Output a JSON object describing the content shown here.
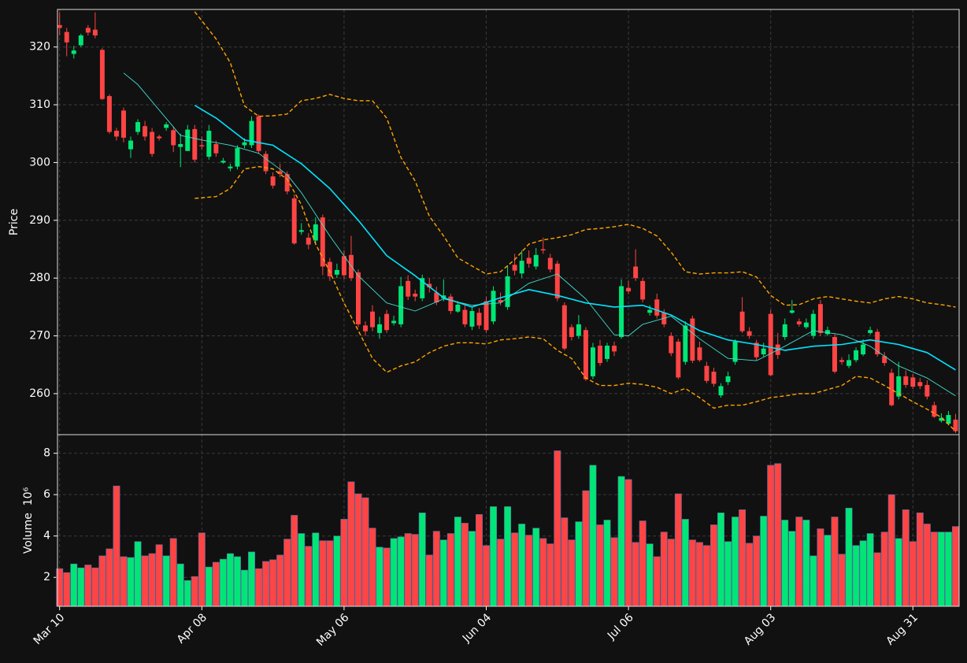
{
  "chart_data": [
    {
      "type": "candlestick",
      "ylabel": "Price",
      "ylim": [
        252.9,
        326.5
      ],
      "yticks": [
        260,
        270,
        280,
        290,
        300,
        310,
        320
      ],
      "grid": true,
      "up_color": "#00e676",
      "down_color": "#ff4444",
      "open": [
        323.8,
        322.6,
        318.8,
        320.3,
        323.3,
        323,
        319.5,
        311.5,
        305.5,
        309,
        302.3,
        305.3,
        306.3,
        305.3,
        304.5,
        306,
        305.6,
        302.7,
        302,
        305.8,
        303,
        301,
        303.2,
        300,
        299,
        299.3,
        303,
        303,
        308,
        301.5,
        297.6,
        298.5,
        298,
        293.8,
        288,
        287,
        286.5,
        290.5,
        282.8,
        280.6,
        283.8,
        284,
        281,
        271.8,
        274.2,
        270.5,
        273.8,
        272.2,
        272,
        279.5,
        277.3,
        276.5,
        279,
        277.5,
        276.5,
        276.8,
        274.2,
        274.5,
        271.6,
        274,
        276,
        272.5,
        276.2,
        275,
        282.3,
        280.8,
        283.5,
        282,
        285,
        283.5,
        282.5,
        275.3,
        271.5,
        270,
        271,
        263,
        268.3,
        266,
        268.3,
        269.8,
        278.3,
        282,
        279.5,
        274,
        276.3,
        274,
        270,
        269,
        265.5,
        273,
        268,
        264.8,
        263.8,
        259.7,
        262,
        265.5,
        274.2,
        270.8,
        268.8,
        266.8,
        273.8,
        268.5,
        269.8,
        274,
        272.5,
        271.5,
        270,
        275.5,
        270.3,
        269.8,
        265.8,
        264.8,
        265.8,
        266.8,
        270.5,
        270.7,
        266.5,
        263.6,
        259.5,
        263,
        262.8,
        262,
        261.5,
        258,
        255.3,
        254.8,
        255.5
      ],
      "high": [
        326,
        323.3,
        320.2,
        322.3,
        323.8,
        326,
        319.8,
        311.8,
        306,
        309.5,
        304.5,
        307.5,
        307.2,
        306,
        304.8,
        307,
        306.2,
        305,
        306.5,
        306.5,
        304.5,
        306.5,
        303.8,
        300.8,
        299.8,
        303,
        304.2,
        308,
        308.3,
        302,
        298.3,
        299.8,
        298.5,
        294.5,
        289.5,
        287.8,
        290.5,
        291,
        283.5,
        282.5,
        284.8,
        287.3,
        281.5,
        272.5,
        275.3,
        273.3,
        274.5,
        273.5,
        280.2,
        280.5,
        278,
        280.6,
        280,
        278.5,
        279.8,
        277.3,
        276,
        275.3,
        275,
        274.8,
        276.8,
        278.6,
        277.5,
        282.2,
        284.2,
        284.8,
        284.8,
        285.2,
        287,
        284.2,
        283,
        275.8,
        272,
        273.6,
        271.5,
        268.8,
        269.3,
        268.8,
        269,
        279.8,
        279.5,
        285,
        280,
        275.3,
        277.3,
        274.6,
        270.6,
        269.5,
        272.5,
        273.5,
        269,
        265.5,
        264.5,
        261.8,
        263.8,
        269.4,
        276.7,
        271.5,
        269.3,
        268.8,
        274.5,
        270.5,
        273,
        276.2,
        273,
        273,
        274.5,
        276.2,
        271.6,
        270.3,
        266.3,
        266.8,
        268,
        269.4,
        271.6,
        271.2,
        267.2,
        264.3,
        265.5,
        264,
        263.4,
        262.7,
        262.3,
        258.6,
        256.6,
        257,
        256.5
      ],
      "low": [
        322,
        318.4,
        318,
        320,
        322,
        321.5,
        310.8,
        305,
        303.8,
        303.5,
        300.8,
        304.8,
        303.8,
        301,
        303.8,
        305.5,
        301.8,
        299.2,
        302.5,
        300,
        302.3,
        300.5,
        301,
        299.8,
        298.5,
        298.8,
        302.5,
        302.5,
        301.5,
        298,
        295.5,
        297.5,
        294.5,
        285.8,
        287.5,
        285,
        285.8,
        280.5,
        279.5,
        280,
        279.8,
        279.5,
        271.5,
        270,
        270.8,
        269.5,
        270.5,
        271.8,
        271.5,
        276.2,
        276,
        276,
        277.5,
        275.3,
        276,
        273.8,
        274,
        271.5,
        271,
        271.2,
        270.5,
        272,
        275.3,
        274.5,
        280.5,
        280,
        281.8,
        281.5,
        284.2,
        281,
        276,
        267.5,
        269.2,
        269.5,
        262.2,
        262.5,
        264.8,
        265.5,
        266.5,
        269.5,
        277.2,
        279.5,
        275.8,
        273.5,
        273,
        271.5,
        266.5,
        262.5,
        265,
        265.3,
        265.5,
        261.8,
        261.2,
        259.3,
        261.5,
        265,
        270.5,
        269.5,
        265.8,
        266.4,
        263,
        266,
        269.3,
        273.8,
        271.6,
        271.2,
        269.5,
        270,
        270,
        263.5,
        265,
        264.4,
        265.4,
        266.5,
        270.2,
        266.4,
        264.8,
        257.8,
        259,
        261,
        260.8,
        260.8,
        259,
        255.8,
        255,
        254.5,
        253.2
      ],
      "close": [
        323.3,
        320.8,
        319.4,
        322,
        322.5,
        322,
        311,
        305.3,
        304.5,
        304.3,
        303.8,
        307,
        304.5,
        301.5,
        304.2,
        306.6,
        303,
        303.2,
        305.7,
        300.5,
        302.8,
        305.5,
        301.6,
        300.3,
        299.3,
        302.5,
        303.5,
        307.2,
        302,
        298.5,
        296,
        298,
        295,
        286,
        288.3,
        285.8,
        289.3,
        282,
        280.3,
        281.4,
        280.5,
        280,
        272,
        270.8,
        271.5,
        272,
        271,
        272.6,
        278.6,
        276.8,
        276.8,
        280,
        278.4,
        275.8,
        277,
        274.3,
        275.4,
        272,
        274.3,
        271.8,
        271,
        277.8,
        275.8,
        280.3,
        281.3,
        283,
        282.5,
        284,
        284.8,
        281.5,
        276.5,
        267.8,
        269.8,
        272,
        262.5,
        268,
        265.3,
        268.3,
        267.3,
        278.6,
        277.7,
        280,
        276.3,
        274.5,
        273.5,
        272,
        267,
        262.8,
        271.8,
        265.7,
        265.8,
        262.2,
        261.7,
        261.3,
        263,
        269,
        270.8,
        270,
        266.3,
        267.8,
        263.2,
        266.7,
        272,
        274.4,
        272,
        272.3,
        273.8,
        270.5,
        271,
        263.8,
        265.5,
        265.8,
        267.5,
        268.5,
        271,
        266.8,
        265.3,
        258,
        263,
        261.5,
        261.2,
        261.3,
        259.5,
        256,
        255.8,
        256.3,
        253.5
      ],
      "series": [
        {
          "color": "#00e5ff",
          "width": 1.6,
          "dashed": false,
          "x": [
            19,
            22,
            26,
            30,
            34,
            38,
            42,
            46,
            50,
            54,
            58,
            62,
            66,
            70,
            74,
            78,
            82,
            86,
            90,
            94,
            98,
            102,
            106,
            110,
            114,
            118,
            122,
            126
          ],
          "values": [
            309.9,
            307.7,
            303.9,
            303,
            299.8,
            295.5,
            290,
            283.9,
            280.4,
            276.6,
            275,
            276.6,
            278,
            277,
            275.7,
            275,
            275.3,
            273.6,
            270.9,
            269.3,
            268.5,
            267.5,
            268.2,
            268.5,
            269.3,
            268.5,
            267.1,
            264.1
          ]
        },
        {
          "color": "#40e0d0",
          "width": 0.9,
          "dashed": false,
          "x": [
            9,
            11,
            14,
            17,
            20,
            24,
            28,
            32,
            34,
            38,
            42,
            46,
            50,
            54,
            58,
            62,
            66,
            70,
            74,
            78,
            80,
            82,
            86,
            90,
            94,
            98,
            102,
            106,
            110,
            114,
            118,
            122,
            126
          ],
          "values": [
            315.5,
            313.5,
            309.1,
            304.7,
            303.9,
            303,
            301.6,
            297.9,
            294.8,
            287.3,
            280.4,
            275.7,
            274.3,
            276.4,
            275.3,
            275.7,
            279.1,
            280.7,
            276.4,
            270.2,
            270,
            272,
            273.4,
            269.5,
            266.1,
            265.7,
            268.2,
            270.9,
            270.2,
            268.2,
            264.8,
            262.7,
            259.6
          ]
        },
        {
          "color": "#ffa500",
          "width": 1.4,
          "dashed": true,
          "x": [
            19,
            22,
            24,
            26,
            28,
            30,
            32,
            34,
            36,
            38,
            40,
            42,
            44,
            46,
            48,
            50,
            52,
            54,
            56,
            58,
            60,
            62,
            64,
            66,
            68,
            70,
            72,
            74,
            76,
            78,
            80,
            82,
            84,
            86,
            88,
            90,
            92,
            94,
            96,
            98,
            100,
            102,
            104,
            106,
            108,
            110,
            112,
            114,
            116,
            118,
            120,
            122,
            124,
            126
          ],
          "values": [
            326.1,
            321.4,
            317.3,
            309.8,
            308,
            308.1,
            308.4,
            310.7,
            311.1,
            311.8,
            311.1,
            310.7,
            310.7,
            307.7,
            300.9,
            296.8,
            290.7,
            287.3,
            283.5,
            282.1,
            280.7,
            281.1,
            283.2,
            285.9,
            286.6,
            287,
            287.5,
            288.4,
            288.6,
            288.9,
            289.3,
            288.6,
            287.3,
            284.5,
            281.1,
            280.7,
            280.9,
            280.9,
            281.1,
            280.2,
            277,
            275.3,
            275.4,
            276.4,
            276.8,
            276.4,
            276,
            275.7,
            276.4,
            276.8,
            276.4,
            275.7,
            275.4,
            275
          ]
        },
        {
          "color": "#ffa500",
          "width": 1.4,
          "dashed": true,
          "x": [
            19,
            22,
            24,
            26,
            28,
            30,
            32,
            34,
            36,
            38,
            40,
            42,
            44,
            46,
            48,
            50,
            52,
            54,
            56,
            58,
            60,
            62,
            64,
            66,
            68,
            70,
            72,
            74,
            76,
            78,
            80,
            82,
            84,
            86,
            88,
            90,
            92,
            94,
            96,
            98,
            100,
            102,
            104,
            106,
            108,
            110,
            112,
            114,
            116,
            118,
            120,
            122,
            124,
            126
          ],
          "values": [
            293.8,
            294.1,
            295.5,
            298.9,
            299.3,
            298.9,
            297.1,
            292.7,
            285.9,
            281.1,
            275.7,
            270.9,
            266.1,
            263.7,
            264.8,
            265.5,
            267.1,
            268.2,
            268.8,
            268.8,
            268.6,
            269.3,
            269.5,
            269.8,
            269.5,
            267.5,
            266.1,
            262.7,
            261.4,
            261.4,
            261.8,
            261.6,
            261.1,
            260,
            260.9,
            259.3,
            257.5,
            258,
            258,
            258.6,
            259.3,
            259.6,
            260,
            260,
            260.7,
            261.4,
            263,
            262.7,
            261.4,
            260,
            258.6,
            257.3,
            255.9,
            253.5
          ]
        }
      ]
    },
    {
      "type": "bar",
      "ylabel": "Volume  10⁶",
      "ylim": [
        0.6,
        8.9
      ],
      "yticks": [
        2,
        4,
        6,
        8
      ],
      "grid": true,
      "categories": [
        "Mar 10",
        null,
        null,
        null,
        null,
        null,
        null,
        null,
        null,
        null,
        null,
        null,
        null,
        null,
        null,
        null,
        null,
        null,
        null,
        null,
        "Apr 08",
        null,
        null,
        null,
        null,
        null,
        null,
        null,
        null,
        null,
        null,
        null,
        null,
        null,
        null,
        null,
        null,
        null,
        null,
        null,
        "May 06",
        null,
        null,
        null,
        null,
        null,
        null,
        null,
        null,
        null,
        null,
        null,
        null,
        null,
        null,
        null,
        null,
        null,
        null,
        null,
        "Jun 04",
        null,
        null,
        null,
        null,
        null,
        null,
        null,
        null,
        null,
        null,
        null,
        null,
        null,
        null,
        null,
        null,
        null,
        null,
        null,
        "Jul 06",
        null,
        null,
        null,
        null,
        null,
        null,
        null,
        null,
        null,
        null,
        null,
        null,
        null,
        null,
        null,
        null,
        null,
        null,
        null,
        "Aug 03",
        null,
        null,
        null,
        null,
        null,
        null,
        null,
        null,
        null,
        null,
        null,
        null,
        null,
        null,
        null,
        null,
        null,
        null,
        null,
        "Aug 31",
        null,
        null,
        null,
        null,
        null,
        null
      ],
      "values": [
        2.42,
        2.23,
        2.65,
        2.46,
        2.6,
        2.46,
        3.04,
        3.38,
        6.42,
        3.0,
        2.96,
        3.73,
        3.04,
        3.15,
        3.58,
        3.04,
        3.88,
        2.65,
        1.85,
        2.04,
        4.15,
        2.5,
        2.73,
        2.88,
        3.15,
        3.0,
        2.35,
        3.23,
        2.42,
        2.77,
        2.85,
        3.08,
        3.85,
        5.0,
        4.12,
        3.5,
        4.15,
        3.77,
        3.77,
        4.0,
        4.81,
        6.62,
        6.04,
        5.85,
        4.38,
        3.46,
        3.42,
        3.88,
        3.96,
        4.12,
        4.08,
        5.12,
        3.08,
        4.23,
        3.81,
        4.12,
        4.92,
        4.62,
        4.23,
        5.04,
        3.54,
        5.42,
        3.85,
        5.42,
        4.15,
        4.58,
        4.04,
        4.38,
        3.88,
        3.62,
        8.12,
        4.88,
        3.81,
        4.69,
        6.19,
        7.42,
        4.54,
        4.77,
        3.92,
        6.88,
        6.73,
        3.69,
        4.73,
        3.62,
        3.0,
        4.19,
        3.85,
        6.04,
        4.81,
        3.81,
        3.69,
        3.54,
        4.54,
        5.12,
        3.73,
        4.92,
        5.27,
        3.65,
        4.0,
        4.96,
        7.42,
        7.5,
        4.77,
        4.23,
        4.92,
        4.77,
        3.04,
        4.35,
        4.04,
        4.92,
        3.12,
        5.35,
        3.54,
        3.77,
        4.12,
        3.19,
        4.19,
        6.0,
        3.88,
        5.27,
        3.73,
        5.12,
        4.58,
        4.19,
        4.19,
        4.19,
        4.46
      ]
    }
  ]
}
